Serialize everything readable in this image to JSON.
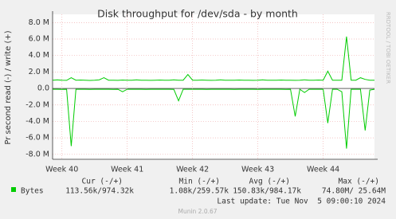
{
  "chart_data": {
    "type": "mirror-line",
    "title": "Disk throughput for /dev/sda - by month",
    "y_label": "Pr second read (-) / write (+)",
    "side_label": "RRDTOOL / TOBI OETIKER",
    "x": [
      0,
      0.5,
      1,
      1.5,
      2,
      2.5,
      3,
      3.5,
      4,
      4.5,
      5,
      5.5,
      6,
      6.5,
      7,
      7.5,
      8,
      8.5,
      9,
      9.5,
      10,
      10.5,
      11,
      11.5,
      12,
      12.5,
      13,
      13.5,
      14,
      14.5,
      15,
      15.5,
      16,
      16.5,
      17,
      17.5,
      18,
      18.5,
      19,
      19.5,
      20,
      20.5,
      21,
      21.5,
      22,
      22.5,
      23,
      23.5,
      24,
      24.5,
      25,
      25.5,
      26,
      26.5,
      27,
      27.5,
      28,
      28.5,
      29,
      29.5,
      30,
      30.5,
      31,
      31.5,
      32,
      32.5,
      33,
      33.5,
      34,
      34.5
    ],
    "xlim": [
      0,
      34.5
    ],
    "xticks": [
      {
        "value": 1,
        "label": "Week 40"
      },
      {
        "value": 8,
        "label": "Week 41"
      },
      {
        "value": 15,
        "label": "Week 42"
      },
      {
        "value": 22,
        "label": "Week 43"
      },
      {
        "value": 29,
        "label": "Week 44"
      }
    ],
    "ylim": [
      -8.6,
      9.0
    ],
    "yticks": [
      {
        "value": 8,
        "label": "8.0 M"
      },
      {
        "value": 6,
        "label": "6.0 M"
      },
      {
        "value": 4,
        "label": "4.0 M"
      },
      {
        "value": 2,
        "label": "2.0 M"
      },
      {
        "value": 0,
        "label": "0.0"
      },
      {
        "value": -2,
        "label": "-2.0 M"
      },
      {
        "value": -4,
        "label": "-4.0 M"
      },
      {
        "value": -6,
        "label": "-6.0 M"
      },
      {
        "value": -8,
        "label": "-8.0 M"
      }
    ],
    "grid": true,
    "series": [
      {
        "name": "Bytes",
        "color": "#00cc00",
        "values": [
          1.0,
          1.05,
          1.0,
          0.98,
          1.3,
          1.0,
          1.02,
          1.0,
          0.97,
          1.0,
          1.05,
          1.3,
          1.0,
          1.0,
          0.98,
          1.02,
          1.0,
          1.0,
          1.05,
          1.0,
          1.0,
          0.98,
          1.0,
          1.02,
          1.0,
          1.0,
          1.05,
          1.0,
          1.0,
          1.7,
          1.0,
          1.0,
          1.02,
          1.0,
          0.98,
          1.0,
          1.05,
          1.0,
          1.0,
          1.0,
          1.02,
          1.0,
          1.0,
          0.98,
          1.0,
          1.05,
          1.0,
          1.0,
          1.0,
          1.02,
          1.0,
          1.0,
          0.98,
          1.0,
          1.05,
          1.0,
          1.0,
          1.02,
          1.0,
          2.1,
          1.0,
          1.0,
          1.0,
          6.3,
          1.0,
          1.0,
          1.3,
          1.1,
          1.0,
          1.0
        ],
        "negative_values": [
          -0.1,
          -0.1,
          -0.12,
          -0.1,
          -7.0,
          -0.1,
          -0.1,
          -0.1,
          -0.12,
          -0.1,
          -0.1,
          -0.1,
          -0.1,
          -0.12,
          -0.1,
          -0.4,
          -0.1,
          -0.1,
          -0.1,
          -0.1,
          -0.12,
          -0.1,
          -0.1,
          -0.1,
          -0.1,
          -0.1,
          -0.12,
          -1.5,
          -0.1,
          -0.1,
          -0.1,
          -0.1,
          -0.1,
          -0.12,
          -0.1,
          -0.1,
          -0.1,
          -0.1,
          -0.1,
          -0.12,
          -0.1,
          -0.1,
          -0.1,
          -0.1,
          -0.12,
          -0.1,
          -0.1,
          -0.1,
          -0.1,
          -0.1,
          -0.12,
          -0.1,
          -3.4,
          -0.1,
          -0.5,
          -0.1,
          -0.1,
          -0.1,
          -0.1,
          -4.2,
          -0.1,
          -0.1,
          -0.4,
          -7.3,
          -0.1,
          -0.1,
          -0.1,
          -5.1,
          -0.2,
          -0.1
        ]
      }
    ],
    "legend_table": {
      "columns": [
        "Cur (-/+)",
        "Min (-/+)",
        "Avg (-/+)",
        "Max (-/+)"
      ],
      "rows": [
        [
          "113.56k/974.32k",
          "1.08k/259.57k",
          "150.83k/984.17k",
          "74.80M/ 25.64M"
        ]
      ]
    },
    "last_update": "Last update: Tue Nov  5 09:00:10 2024",
    "footer": "Munin 2.0.67"
  }
}
